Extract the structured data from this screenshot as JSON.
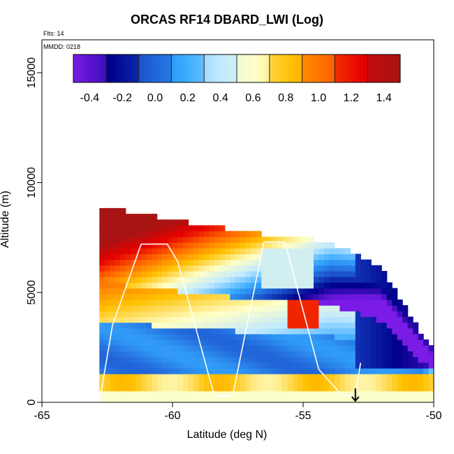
{
  "header": {
    "title": "ORCAS RF14 DBARD_LWI (Log)",
    "flights_note": "Flts: 14",
    "date_note": "MMDD: 0218"
  },
  "chart_data": {
    "type": "heatmap",
    "title": "ORCAS RF14 DBARD_LWI (Log)",
    "xlabel": "Latitude (deg N)",
    "ylabel": "Altitude (m)",
    "xlim": [
      -65,
      -50
    ],
    "ylim": [
      0,
      16500
    ],
    "x_ticks": [
      -65,
      -60,
      -55,
      -50
    ],
    "x_tick_labels": [
      "-65",
      "-60",
      "-55",
      "-50"
    ],
    "y_ticks": [
      0,
      5000,
      10000,
      15000
    ],
    "y_tick_labels": [
      "0",
      "5000",
      "10000",
      "15000"
    ],
    "colorbar": {
      "min": -0.5,
      "max": 1.5,
      "ticks": [
        -0.4,
        -0.2,
        0.0,
        0.2,
        0.4,
        0.6,
        0.8,
        1.0,
        1.2,
        1.4
      ],
      "tick_labels": [
        "-0.4",
        "-0.2",
        "0.0",
        "0.2",
        "0.4",
        "0.6",
        "0.8",
        "1.0",
        "1.2",
        "1.4"
      ],
      "colors": [
        "#7a1be6",
        "#00008b",
        "#1e5bd2",
        "#35a8ff",
        "#bfe9ff",
        "#ffffc8",
        "#ffc000",
        "#ff6a00",
        "#e60000",
        "#a81414"
      ]
    },
    "data_extent": {
      "lat_range": [
        -63,
        -50
      ],
      "alt_top_at_lat": [
        [
          -62.8,
          8800
        ],
        [
          -60,
          8200
        ],
        [
          -57,
          7600
        ],
        [
          -54,
          7200
        ],
        [
          -52,
          6000
        ],
        [
          -51,
          4000
        ],
        [
          -50,
          2200
        ]
      ]
    },
    "flight_track": {
      "lat": [
        -62.8,
        -62.3,
        -61.2,
        -60.2,
        -59.8,
        -58.4,
        -57.7,
        -56.5,
        -55.7,
        -54.4,
        -53.5,
        -53.0,
        -52.8
      ],
      "alt_m": [
        0,
        3500,
        7200,
        7200,
        6400,
        300,
        300,
        7300,
        7300,
        1500,
        300,
        300,
        1800
      ]
    },
    "marker": {
      "lat": -53.0,
      "symbol": "down-arrow"
    },
    "grid": false,
    "legend": "colorbar-top"
  }
}
